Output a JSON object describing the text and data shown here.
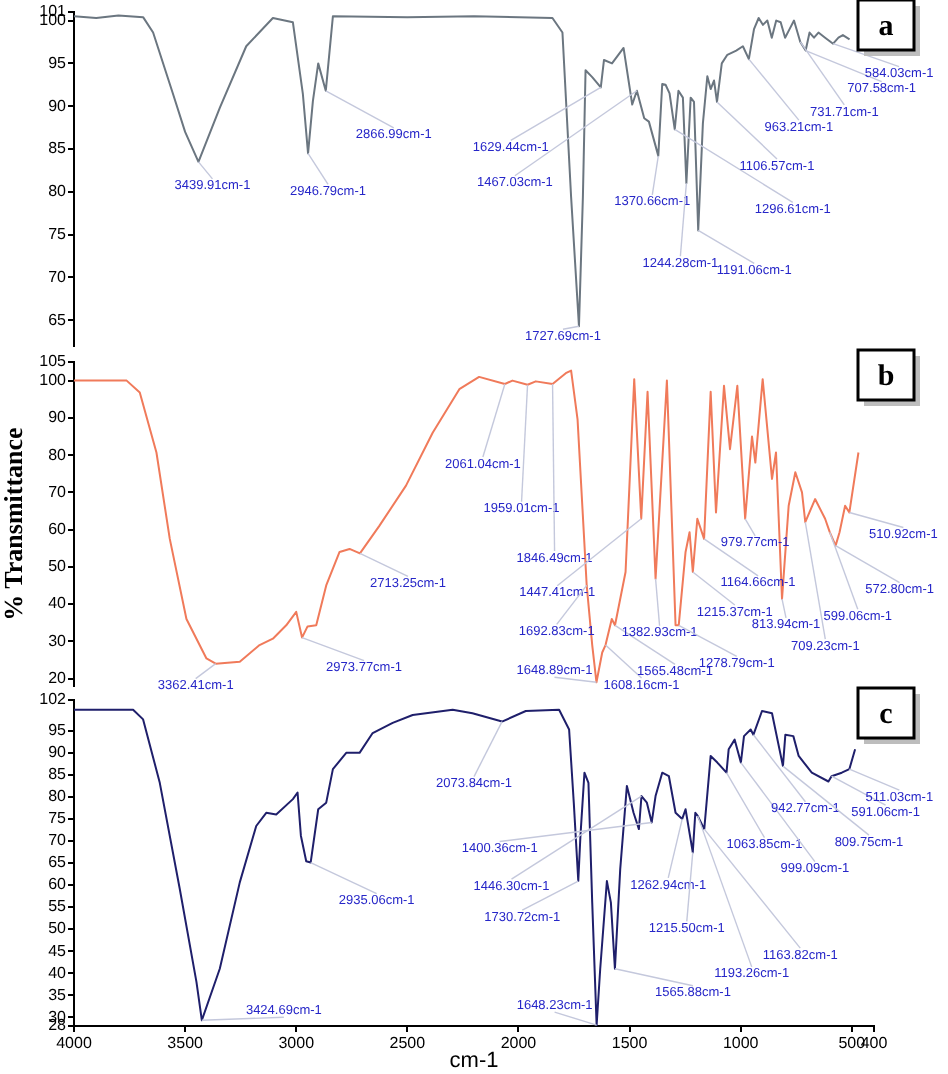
{
  "chart_data": [
    {
      "type": "line",
      "color": "#6b7680",
      "xlim": [
        4000,
        400
      ],
      "ylim": [
        62,
        101
      ],
      "yticks": [
        65,
        70,
        75,
        80,
        85,
        90,
        95,
        100,
        101
      ],
      "tick_labels": "y",
      "x": [
        4000,
        3900,
        3800,
        3689,
        3644,
        3554,
        3500,
        3439.91,
        3344,
        3225,
        3105,
        3015,
        2970,
        2946.79,
        2925,
        2901,
        2866.99,
        2835,
        2500,
        2200,
        1847,
        1802,
        1763,
        1727.69,
        1710,
        1698,
        1668,
        1629.44,
        1615,
        1579,
        1527,
        1488,
        1467.03,
        1434,
        1413,
        1370.66,
        1353,
        1338,
        1320,
        1296.61,
        1280,
        1260,
        1244.28,
        1225,
        1210,
        1191.06,
        1170,
        1150,
        1135,
        1120,
        1106.57,
        1085,
        1060,
        1020,
        990,
        963.21,
        940,
        919,
        900,
        880,
        860,
        840,
        820,
        800,
        780,
        760,
        731.71,
        707.58,
        690,
        670,
        650,
        620,
        584.03,
        560,
        540,
        510
      ],
      "values": [
        100.5,
        100.3,
        100.6,
        100.4,
        98.6,
        91.4,
        87,
        83.5,
        89.8,
        97,
        100.3,
        99.8,
        91.4,
        84.5,
        90.6,
        95,
        91.8,
        100.5,
        100.4,
        100.5,
        100.3,
        98.6,
        79.4,
        64.3,
        79.4,
        94.2,
        93.4,
        92.2,
        95.4,
        95,
        96.8,
        90.2,
        91.8,
        88.6,
        88.2,
        84.2,
        92.6,
        92.5,
        91.5,
        87.3,
        91.8,
        91,
        81,
        91,
        90.5,
        75.5,
        88,
        93.5,
        92,
        93,
        90.5,
        95,
        96,
        96.5,
        97,
        95.5,
        99,
        100.3,
        99.5,
        100,
        98,
        100,
        99.8,
        98,
        99,
        100,
        97.5,
        96.5,
        98.6,
        98,
        98.6,
        98,
        97.3,
        98,
        98.3,
        97.8
      ],
      "annotations": [
        {
          "text": "3439.91cm-1",
          "x": 3439.91,
          "y": 83.5
        },
        {
          "text": "2946.79cm-1",
          "x": 2946.79,
          "y": 84.5
        },
        {
          "text": "2866.99cm-1",
          "x": 2866.99,
          "y": 91.8
        },
        {
          "text": "1629.44cm-1",
          "x": 1629.44,
          "y": 92.2
        },
        {
          "text": "1467.03cm-1",
          "x": 1467.03,
          "y": 91.8
        },
        {
          "text": "1727.69cm-1",
          "x": 1727.69,
          "y": 64.3
        },
        {
          "text": "1370.66cm-1",
          "x": 1370.66,
          "y": 84.2
        },
        {
          "text": "1244.28cm-1",
          "x": 1244.28,
          "y": 81
        },
        {
          "text": "1191.06cm-1",
          "x": 1191.06,
          "y": 75.5
        },
        {
          "text": "1296.61cm-1",
          "x": 1296.61,
          "y": 87.3
        },
        {
          "text": "1106.57cm-1",
          "x": 1106.57,
          "y": 90.5
        },
        {
          "text": "963.21cm-1",
          "x": 963.21,
          "y": 95.5
        },
        {
          "text": "731.71cm-1",
          "x": 731.71,
          "y": 97.5
        },
        {
          "text": "707.58cm-1",
          "x": 707.58,
          "y": 96.5
        },
        {
          "text": "584.03cm-1",
          "x": 584.03,
          "y": 97.3
        },
        "a"
      ]
    },
    {
      "type": "line",
      "color": "#f07a5a",
      "xlim": [
        4000,
        400
      ],
      "ylim": [
        18,
        105
      ],
      "yticks": [
        20,
        30,
        40,
        50,
        60,
        70,
        80,
        90,
        100,
        105
      ],
      "tick_labels": "y",
      "ylabel": "% Transmittance",
      "x": [
        4000,
        3763,
        3704,
        3629,
        3569,
        3494,
        3404,
        3362.41,
        3254,
        3165,
        3105,
        3045,
        3000,
        2973.77,
        2949,
        2910,
        2865,
        2805,
        2760,
        2713.25,
        2626,
        2506,
        2386,
        2266,
        2177,
        2061.04,
        2027,
        1959.01,
        1922,
        1846.49,
        1787,
        1763,
        1734,
        1692.83,
        1668,
        1648.89,
        1623,
        1608.16,
        1580,
        1565.48,
        1518,
        1479,
        1447.41,
        1419,
        1382.93,
        1332,
        1293,
        1278.79,
        1248,
        1230,
        1215.37,
        1195,
        1164.66,
        1135,
        1111,
        1075,
        1048,
        1015,
        979.77,
        949,
        934,
        901,
        859,
        841,
        813.94,
        784,
        754,
        724,
        709.23,
        665,
        620,
        599.06,
        572.8,
        555,
        530,
        510.92,
        470
      ],
      "values": [
        100,
        100,
        96.8,
        80.7,
        57.5,
        36,
        25.4,
        24,
        24.5,
        29,
        30.7,
        34.3,
        37.9,
        31,
        34,
        34.3,
        45,
        54,
        54.8,
        53.6,
        61,
        71.8,
        86,
        97.7,
        101,
        99.1,
        100,
        98.9,
        99.8,
        99.1,
        102,
        102.7,
        89.6,
        45,
        29,
        19,
        27,
        29,
        36,
        34.3,
        48.6,
        100.4,
        62.9,
        97,
        46.8,
        100,
        34.3,
        34.3,
        54,
        59.3,
        48.6,
        62.9,
        57.5,
        97,
        64.6,
        98.6,
        81.6,
        98.6,
        62.9,
        85,
        78,
        100.4,
        73.6,
        80.7,
        41.4,
        66.4,
        75.4,
        70,
        62,
        68.2,
        62.9,
        59.3,
        55.7,
        59.3,
        66.4,
        64.6,
        80.7
      ],
      "annotations": [
        {
          "text": "2061.04cm-1",
          "x": 2061.04,
          "y": 99.1
        },
        {
          "text": "1959.01cm-1",
          "x": 1959.01,
          "y": 98.9
        },
        {
          "text": "1846.49cm-1",
          "x": 1846.49,
          "y": 99.1
        },
        {
          "text": "2713.25cm-1",
          "x": 2713.25,
          "y": 53.6
        },
        {
          "text": "3362.41cm-1",
          "x": 3362.41,
          "y": 24
        },
        {
          "text": "2973.77cm-1",
          "x": 2973.77,
          "y": 31
        },
        {
          "text": "1447.41cm-1",
          "x": 1447.41,
          "y": 62.9
        },
        {
          "text": "1692.83cm-1",
          "x": 1692.83,
          "y": 45
        },
        {
          "text": "1648.89cm-1",
          "x": 1648.89,
          "y": 19
        },
        {
          "text": "1608.16cm-1",
          "x": 1608.16,
          "y": 29
        },
        {
          "text": "1565.48cm-1",
          "x": 1565.48,
          "y": 34.3
        },
        {
          "text": "1382.93cm-1",
          "x": 1382.93,
          "y": 46.8
        },
        {
          "text": "1278.79cm-1",
          "x": 1278.79,
          "y": 34.3
        },
        {
          "text": "1215.37cm-1",
          "x": 1215.37,
          "y": 48.6
        },
        {
          "text": "1164.66cm-1",
          "x": 1164.66,
          "y": 57.5
        },
        {
          "text": "979.77cm-1",
          "x": 979.77,
          "y": 62.9
        },
        {
          "text": "813.94cm-1",
          "x": 813.94,
          "y": 41.4
        },
        {
          "text": "709.23cm-1",
          "x": 709.23,
          "y": 62
        },
        {
          "text": "599.06cm-1",
          "x": 599.06,
          "y": 59.3
        },
        {
          "text": "572.80cm-1",
          "x": 572.8,
          "y": 55.7
        },
        {
          "text": "510.92cm-1",
          "x": 510.92,
          "y": 64.6
        },
        "b"
      ]
    },
    {
      "type": "line",
      "color": "#1f1f6b",
      "xlim": [
        4000,
        400
      ],
      "xticks": [
        4000,
        3500,
        3000,
        2500,
        2000,
        1500,
        1000,
        500,
        400
      ],
      "xlabel": "cm-1",
      "ylim": [
        28,
        102
      ],
      "yticks": [
        28,
        30,
        35,
        40,
        45,
        50,
        55,
        60,
        65,
        70,
        75,
        80,
        85,
        90,
        95,
        102
      ],
      "x": [
        4000,
        3734,
        3689,
        3614,
        3524,
        3449,
        3424.69,
        3344,
        3254,
        3180,
        3135,
        3090,
        3015,
        2994,
        2979,
        2955,
        2935.06,
        2901,
        2865,
        2835,
        2775,
        2715,
        2656,
        2566,
        2476,
        2296,
        2207,
        2073.84,
        1967,
        1817,
        1772,
        1751,
        1730.72,
        1721,
        1703,
        1685,
        1668,
        1648.23,
        1632,
        1602,
        1584,
        1565.88,
        1542,
        1512,
        1482,
        1458,
        1446.3,
        1422,
        1400.36,
        1383,
        1353,
        1323,
        1293,
        1262.94,
        1248,
        1215.5,
        1204,
        1193.26,
        1163.82,
        1135,
        1105,
        1063.85,
        1054,
        1027,
        999.09,
        985,
        955,
        942.77,
        904,
        859,
        809.75,
        799,
        763,
        739,
        680,
        605,
        591.06,
        545,
        511.03,
        485
      ],
      "values": [
        99.8,
        99.8,
        97.6,
        83.2,
        59.1,
        38,
        29.3,
        41,
        60.6,
        73.4,
        76.4,
        76,
        79.5,
        81,
        71.2,
        65.4,
        65.1,
        77.2,
        78.7,
        86.3,
        90,
        90,
        94.5,
        96.8,
        98.6,
        99.8,
        99,
        97.1,
        99.5,
        99.8,
        95.3,
        78.7,
        60.9,
        71.2,
        85.5,
        83.2,
        56,
        28.2,
        41,
        60.9,
        56,
        41,
        63.6,
        82.5,
        76.4,
        72.7,
        80.2,
        78.7,
        74.2,
        80.2,
        85.5,
        84.7,
        76.4,
        75,
        77.2,
        67.4,
        76.4,
        75.7,
        72.7,
        89.3,
        87.8,
        85.5,
        90.8,
        93,
        87.8,
        93.8,
        95.3,
        94.1,
        99.5,
        99,
        87,
        94.1,
        93.8,
        89.3,
        85.5,
        83.5,
        84.7,
        85.5,
        86.3,
        90.8
      ],
      "annotations": [
        {
          "text": "2073.84cm-1",
          "x": 2073.84,
          "y": 97.1
        },
        {
          "text": "2935.06cm-1",
          "x": 2935.06,
          "y": 65.1
        },
        {
          "text": "3424.69cm-1",
          "x": 3424.69,
          "y": 29.3
        },
        {
          "text": "1400.36cm-1",
          "x": 1400.36,
          "y": 74.2
        },
        {
          "text": "1446.30cm-1",
          "x": 1446.3,
          "y": 80.2
        },
        {
          "text": "1730.72cm-1",
          "x": 1730.72,
          "y": 60.9
        },
        {
          "text": "1648.23cm-1",
          "x": 1648.23,
          "y": 28.2
        },
        {
          "text": "1565.88cm-1",
          "x": 1565.88,
          "y": 41
        },
        {
          "text": "1262.94cm-1",
          "x": 1262.94,
          "y": 75
        },
        {
          "text": "1215.50cm-1",
          "x": 1215.5,
          "y": 67.4
        },
        {
          "text": "1193.26cm-1",
          "x": 1193.26,
          "y": 75.7
        },
        {
          "text": "1163.82cm-1",
          "x": 1163.82,
          "y": 72.7
        },
        {
          "text": "1063.85cm-1",
          "x": 1063.85,
          "y": 85.5
        },
        {
          "text": "999.09cm-1",
          "x": 999.09,
          "y": 87.8
        },
        {
          "text": "942.77cm-1",
          "x": 942.77,
          "y": 94.1
        },
        {
          "text": "809.75cm-1",
          "x": 809.75,
          "y": 87
        },
        {
          "text": "591.06cm-1",
          "x": 591.06,
          "y": 84.7
        },
        {
          "text": "511.03cm-1",
          "x": 511.03,
          "y": 86.3
        },
        "c"
      ]
    }
  ]
}
